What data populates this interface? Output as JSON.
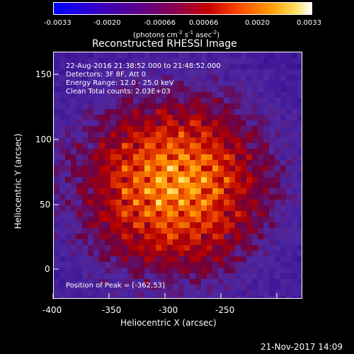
{
  "colorbar": {
    "tick_labels": [
      "-0.0033",
      "-0.0020",
      "-0.00066",
      "0.00066",
      "0.0020",
      "0.0033"
    ],
    "units": "(photons cm",
    "units_exp1": "-2",
    "units_mid": " s",
    "units_exp2": "-1",
    "units_mid2": " asec",
    "units_exp3": "-2",
    "units_end": ")"
  },
  "plot": {
    "title": "Reconstructed RHESSI Image",
    "info": {
      "line1": "22-Aug-2016 21:38:52.000 to 21:48:52.000",
      "line2": "Detectors: 3F 8F, Att 0",
      "line3": "Energy Range: 12.0 - 25.0 keV",
      "line4": "Clean     Total counts: 2.03E+03"
    },
    "peak_text": "Position of Peak = [-362,53]",
    "xlabel": "Heliocentric X (arcsec)",
    "ylabel": "Heliocentric Y (arcsec)",
    "x_ticks": [
      "-400",
      "-350",
      "-300",
      "-250"
    ],
    "y_ticks": [
      "150",
      "100",
      "50",
      "0"
    ]
  },
  "footer": {
    "timestamp": "21-Nov-2017 14:09"
  }
}
